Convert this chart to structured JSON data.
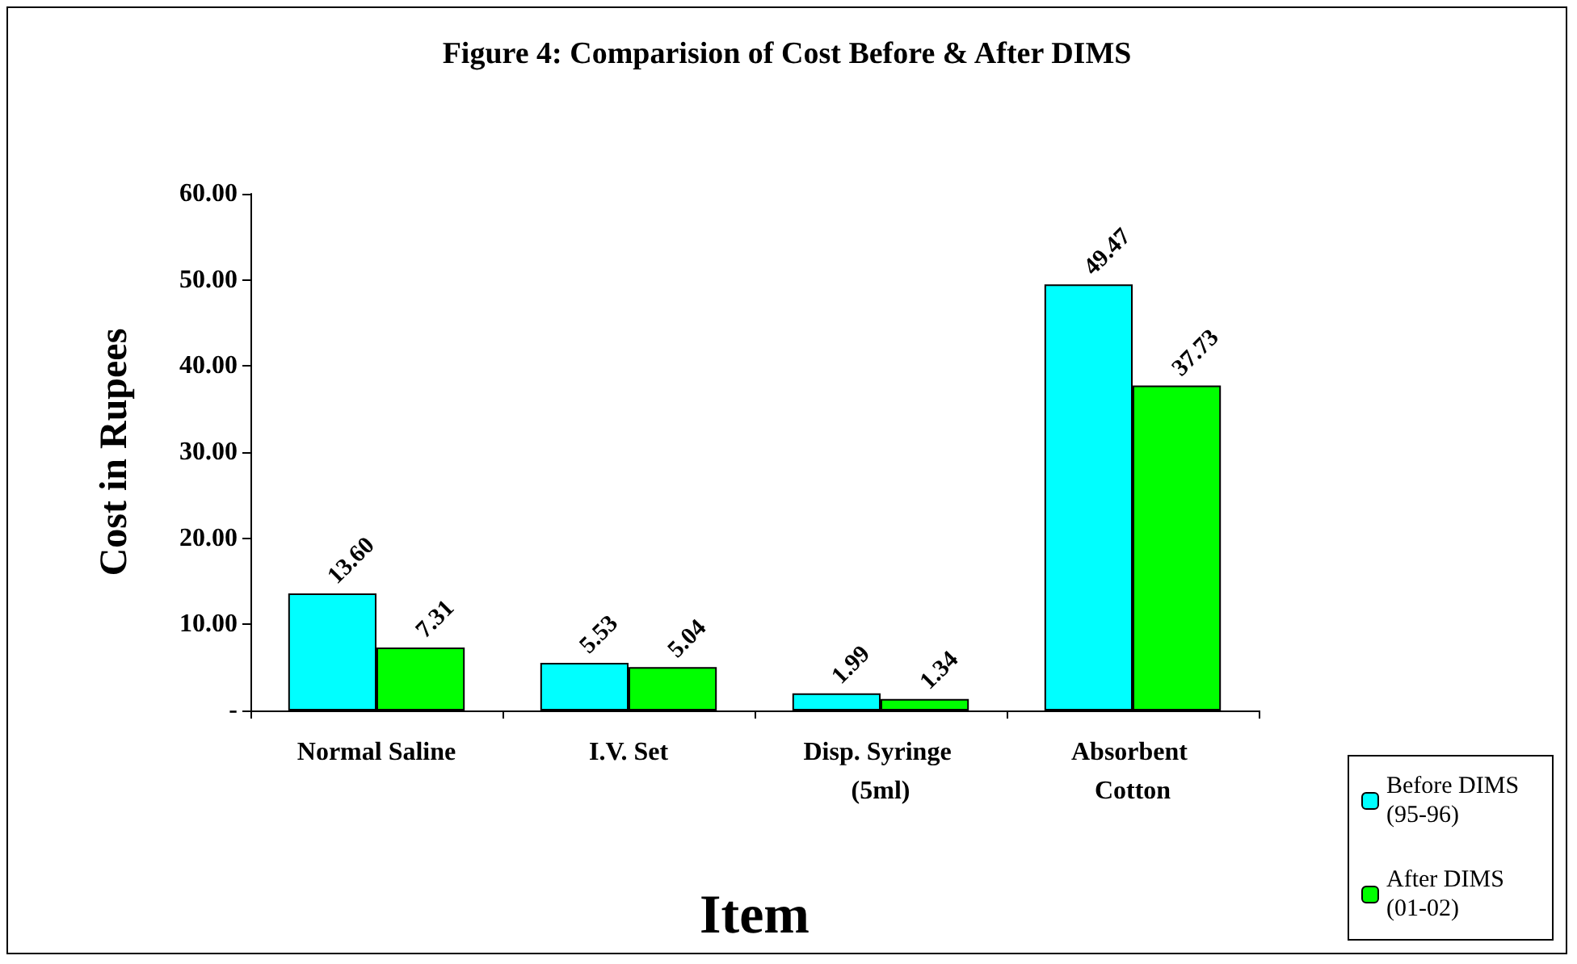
{
  "chart_data": {
    "type": "bar",
    "title": "Figure 4: Comparision of Cost Before & After DIMS",
    "xlabel": "Item",
    "ylabel": "Cost in Rupees",
    "categories": [
      "Normal Saline",
      "I.V. Set",
      "Disp. Syringe (5ml)",
      "Absorbent Cotton"
    ],
    "series": [
      {
        "name": "Before DIMS (95-96)",
        "color": "#00ffff",
        "values": [
          13.6,
          5.53,
          1.99,
          49.47
        ],
        "value_labels": [
          "13.60",
          "5.53",
          "1.99",
          "49.47"
        ]
      },
      {
        "name": "After DIMS (01-02)",
        "color": "#00ff00",
        "values": [
          7.31,
          5.04,
          1.34,
          37.73
        ],
        "value_labels": [
          "7.31",
          "5.04",
          "1.34",
          "37.73"
        ]
      }
    ],
    "ylim": [
      0,
      60
    ],
    "yticks": [
      {
        "value": 0,
        "label": "-"
      },
      {
        "value": 10,
        "label": "10.00"
      },
      {
        "value": 20,
        "label": "20.00"
      },
      {
        "value": 30,
        "label": "30.00"
      },
      {
        "value": 40,
        "label": "40.00"
      },
      {
        "value": 50,
        "label": "50.00"
      },
      {
        "value": 60,
        "label": "60.00"
      }
    ],
    "grid": false,
    "legend": "bottom right"
  }
}
